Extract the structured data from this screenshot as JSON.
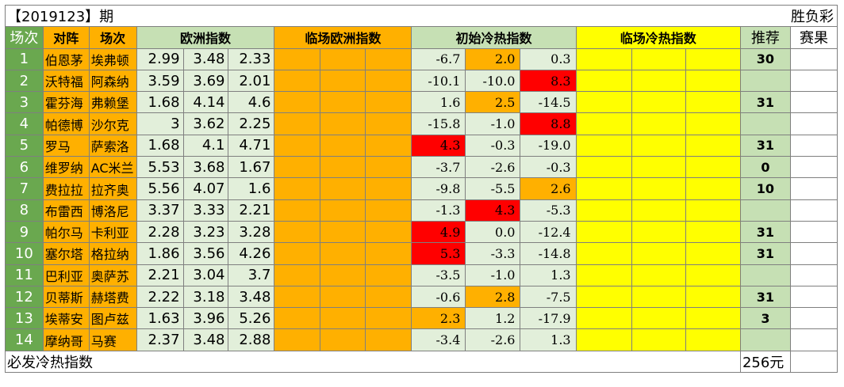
{
  "title": "【2019123】期",
  "game_type": "胜负彩",
  "headers": {
    "no": "场次",
    "matchup": "对阵",
    "matchup2": "场次",
    "euro": "欧洲指数",
    "live_euro": "临场欧洲指数",
    "init_heat": "初始冷热指数",
    "live_heat": "临场冷热指数",
    "recommend": "推荐",
    "result": "赛果"
  },
  "rows": [
    {
      "no": "1",
      "home": "伯恩茅",
      "away": "埃弗顿",
      "o1": "2.99",
      "o2": "3.48",
      "o3": "2.33",
      "h1": "-6.7",
      "h2": "2.0",
      "h3": "0.3",
      "rec": "30"
    },
    {
      "no": "2",
      "home": "沃特福",
      "away": "阿森纳",
      "o1": "3.59",
      "o2": "3.69",
      "o3": "2.01",
      "h1": "-10.1",
      "h2": "-10.0",
      "h3": "8.3",
      "rec": ""
    },
    {
      "no": "3",
      "home": "霍芬海",
      "away": "弗赖堡",
      "o1": "1.68",
      "o2": "4.14",
      "o3": "4.6",
      "h1": "1.6",
      "h2": "2.5",
      "h3": "-14.5",
      "rec": "31"
    },
    {
      "no": "4",
      "home": "帕德博",
      "away": "沙尔克",
      "o1": "3",
      "o2": "3.62",
      "o3": "2.25",
      "h1": "-15.8",
      "h2": "-1.0",
      "h3": "8.8",
      "rec": ""
    },
    {
      "no": "5",
      "home": "罗马",
      "away": "萨索洛",
      "o1": "1.68",
      "o2": "4.1",
      "o3": "4.71",
      "h1": "4.3",
      "h2": "-0.3",
      "h3": "-19.0",
      "rec": "31"
    },
    {
      "no": "6",
      "home": "维罗纳",
      "away": "AC米兰",
      "o1": "5.53",
      "o2": "3.68",
      "o3": "1.67",
      "h1": "-3.7",
      "h2": "-2.6",
      "h3": "-0.3",
      "rec": "0"
    },
    {
      "no": "7",
      "home": "费拉拉",
      "away": "拉齐奥",
      "o1": "5.56",
      "o2": "4.07",
      "o3": "1.6",
      "h1": "-9.8",
      "h2": "-5.5",
      "h3": "2.6",
      "rec": "10"
    },
    {
      "no": "8",
      "home": "布雷西",
      "away": "博洛尼",
      "o1": "3.37",
      "o2": "3.33",
      "o3": "2.21",
      "h1": "-1.3",
      "h2": "4.3",
      "h3": "-5.3",
      "rec": ""
    },
    {
      "no": "9",
      "home": "帕尔马",
      "away": "卡利亚",
      "o1": "2.28",
      "o2": "3.23",
      "o3": "3.28",
      "h1": "4.9",
      "h2": "0.0",
      "h3": "-12.4",
      "rec": "31"
    },
    {
      "no": "10",
      "home": "塞尔塔",
      "away": "格拉纳",
      "o1": "1.86",
      "o2": "3.56",
      "o3": "4.26",
      "h1": "5.3",
      "h2": "-3.3",
      "h3": "-14.8",
      "rec": "31"
    },
    {
      "no": "11",
      "home": "巴利亚",
      "away": "奥萨苏",
      "o1": "2.21",
      "o2": "3.04",
      "o3": "3.7",
      "h1": "-3.5",
      "h2": "-1.0",
      "h3": "1.3",
      "rec": ""
    },
    {
      "no": "12",
      "home": "贝蒂斯",
      "away": "赫塔费",
      "o1": "2.22",
      "o2": "3.18",
      "o3": "3.48",
      "h1": "-0.6",
      "h2": "2.8",
      "h3": "-7.5",
      "rec": "31"
    },
    {
      "no": "13",
      "home": "埃蒂安",
      "away": "图卢兹",
      "o1": "1.63",
      "o2": "3.96",
      "o3": "5.26",
      "h1": "2.3",
      "h2": "1.2",
      "h3": "-17.9",
      "rec": "3"
    },
    {
      "no": "14",
      "home": "摩纳哥",
      "away": "马赛",
      "o1": "2.37",
      "o2": "3.48",
      "o3": "2.88",
      "h1": "-3.4",
      "h2": "-2.6",
      "h3": "1.3",
      "rec": ""
    }
  ],
  "heat_highlight": {
    "hot": [
      [
        1,
        2
      ],
      [
        3,
        2
      ],
      [
        4,
        0
      ],
      [
        7,
        1
      ],
      [
        8,
        0
      ],
      [
        9,
        0
      ]
    ],
    "warm": [
      [
        0,
        1
      ],
      [
        2,
        1
      ],
      [
        6,
        2
      ],
      [
        11,
        1
      ],
      [
        12,
        0
      ]
    ]
  },
  "colors": {
    "number_bg": "#6aa84f",
    "team_bg": "#ffb000",
    "odds_bg": "#e2efda",
    "hot": "#ff0000",
    "warm": "#ffb000",
    "live_heat_bg": "#ffff00",
    "recommend_bg": "#c6e0b4"
  },
  "footer": {
    "label": "必发冷热指数",
    "total": "256元"
  }
}
